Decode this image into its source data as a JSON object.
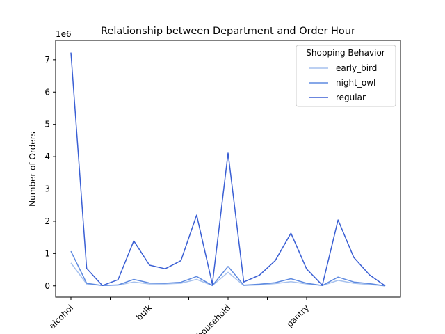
{
  "chart_data": {
    "type": "line",
    "title": "Relationship between Department and Order Hour",
    "xlabel": "",
    "ylabel": "Number of Orders",
    "y_multiplier_label": "1e6",
    "ylim": [
      -0.35,
      7.6
    ],
    "y_ticks": [
      0,
      1,
      2,
      3,
      4,
      5,
      6,
      7
    ],
    "x_count": 21,
    "x_tick_labels": [
      {
        "index": 0,
        "label": "alcohol"
      },
      {
        "index": 5,
        "label": "bulk"
      },
      {
        "index": 10,
        "label": "household"
      },
      {
        "index": 15,
        "label": "pantry"
      }
    ],
    "x_extra_ticks": [
      2.5,
      7.5,
      12.5,
      17.5
    ],
    "legend": {
      "title": "Shopping Behavior",
      "position": "top-right"
    },
    "series": [
      {
        "name": "early_bird",
        "color": "#a6c1ee",
        "values": [
          0.71,
          0.06,
          0.01,
          0.02,
          0.12,
          0.06,
          0.06,
          0.08,
          0.2,
          0.01,
          0.42,
          0.01,
          0.03,
          0.07,
          0.13,
          0.06,
          0.01,
          0.17,
          0.08,
          0.04,
          0.0
        ]
      },
      {
        "name": "night_owl",
        "color": "#5e8ae0",
        "values": [
          1.07,
          0.08,
          0.01,
          0.03,
          0.2,
          0.09,
          0.08,
          0.11,
          0.29,
          0.01,
          0.6,
          0.02,
          0.05,
          0.1,
          0.22,
          0.08,
          0.01,
          0.27,
          0.12,
          0.07,
          0.0
        ]
      },
      {
        "name": "regular",
        "color": "#3a5fd4",
        "values": [
          7.22,
          0.54,
          0.01,
          0.19,
          1.39,
          0.64,
          0.53,
          0.78,
          2.19,
          0.05,
          4.11,
          0.12,
          0.33,
          0.78,
          1.63,
          0.52,
          0.02,
          2.04,
          0.88,
          0.34,
          0.0
        ]
      }
    ]
  }
}
